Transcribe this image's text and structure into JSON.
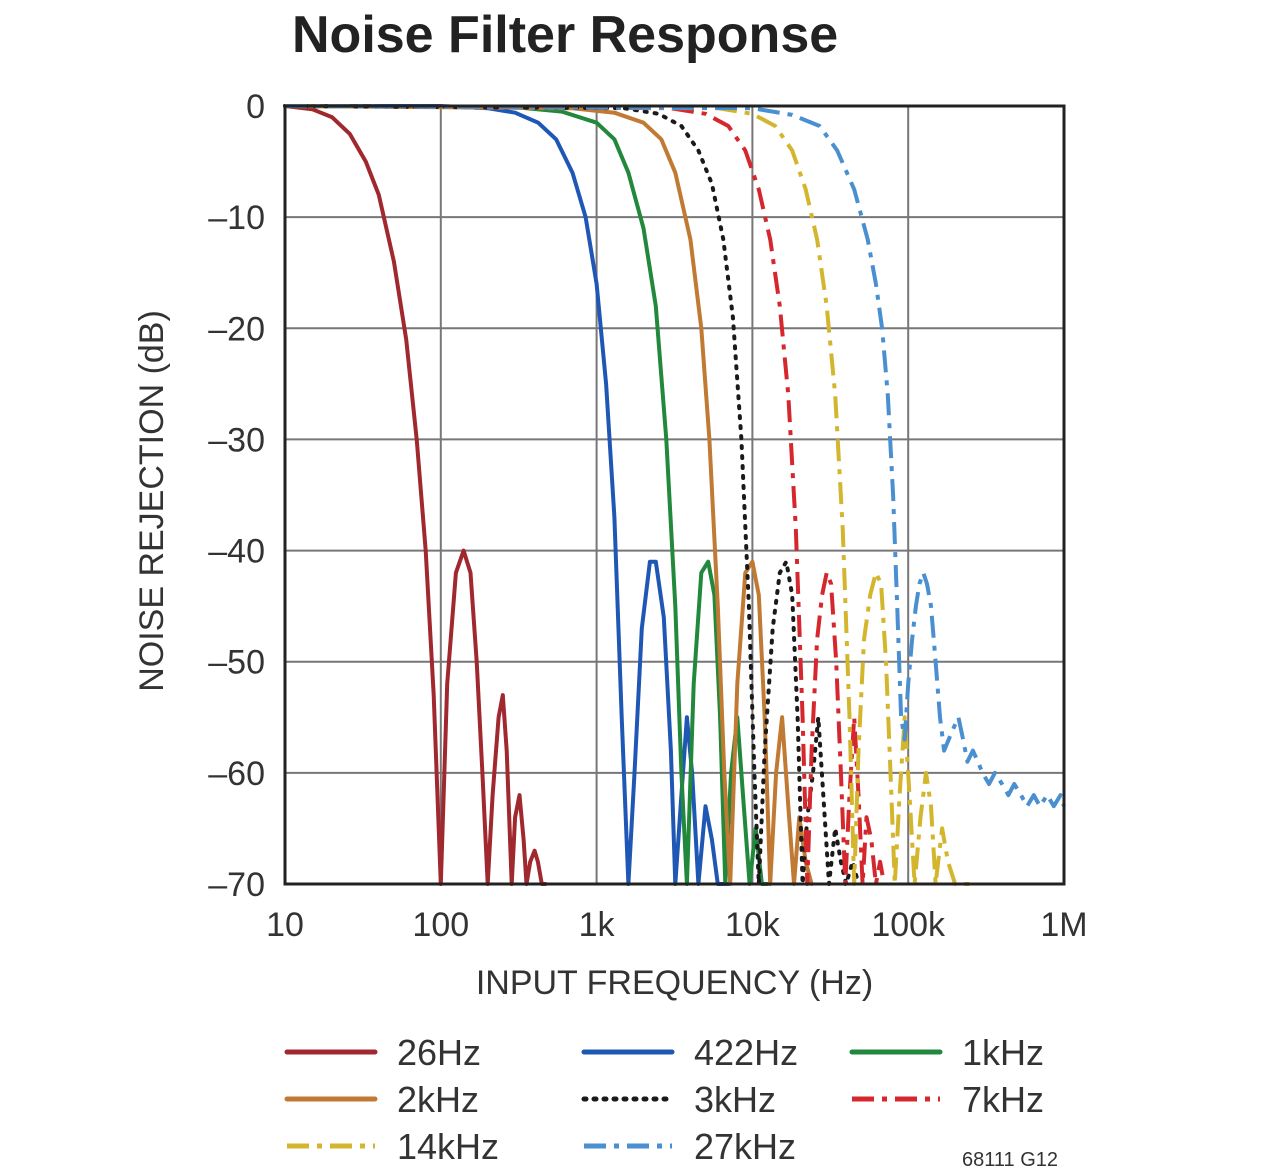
{
  "chart_data": {
    "type": "line",
    "title": "Noise Filter Response",
    "xlabel": "INPUT FREQUENCY (Hz)",
    "ylabel": "NOISE REJECTION (dB)",
    "xscale": "log",
    "xlim": [
      10,
      1000000
    ],
    "ylim": [
      -70,
      0
    ],
    "x_ticks": [
      {
        "value": 10,
        "label": "10"
      },
      {
        "value": 100,
        "label": "100"
      },
      {
        "value": 1000,
        "label": "1k"
      },
      {
        "value": 10000,
        "label": "10k"
      },
      {
        "value": 100000,
        "label": "100k"
      },
      {
        "value": 1000000,
        "label": "1M"
      }
    ],
    "y_ticks": [
      {
        "value": 0,
        "label": "0"
      },
      {
        "value": -10,
        "label": "–10"
      },
      {
        "value": -20,
        "label": "–20"
      },
      {
        "value": -30,
        "label": "–30"
      },
      {
        "value": -40,
        "label": "–40"
      },
      {
        "value": -50,
        "label": "–50"
      },
      {
        "value": -60,
        "label": "–60"
      },
      {
        "value": -70,
        "label": "–70"
      }
    ],
    "grid": true,
    "legend_position": "bottom",
    "figure_id": "68111 G12",
    "series": [
      {
        "name": "26Hz",
        "color": "#a0282f",
        "style": "solid",
        "x": [
          10,
          15,
          20,
          26,
          33,
          40,
          50,
          60,
          70,
          80,
          90,
          100,
          110,
          125,
          140,
          155,
          170,
          185,
          200,
          215,
          235,
          250,
          265,
          285,
          300,
          320,
          340,
          355,
          375,
          400,
          420,
          445,
          470
        ],
        "y": [
          0,
          -0.3,
          -1,
          -2.5,
          -5,
          -8,
          -14,
          -21,
          -30,
          -40,
          -53,
          -70,
          -52,
          -42,
          -40,
          -42,
          -50,
          -60,
          -70,
          -62,
          -55,
          -53,
          -58,
          -70,
          -64,
          -62,
          -66,
          -70,
          -68,
          -67,
          -68,
          -70,
          -70
        ]
      },
      {
        "name": "422Hz",
        "color": "#1f57b5",
        "style": "solid",
        "x": [
          10,
          100,
          200,
          300,
          422,
          550,
          700,
          850,
          1000,
          1150,
          1300,
          1450,
          1600,
          1750,
          1950,
          2200,
          2400,
          2700,
          3000,
          3200,
          3500,
          3800,
          4100,
          4500,
          5000,
          5500,
          6000,
          7000
        ],
        "y": [
          0,
          0,
          -0.2,
          -0.6,
          -1.5,
          -3,
          -6,
          -10,
          -16,
          -25,
          -37,
          -55,
          -70,
          -60,
          -47,
          -41,
          -41,
          -46,
          -58,
          -70,
          -62,
          -55,
          -60,
          -70,
          -63,
          -66,
          -70,
          -70
        ]
      },
      {
        "name": "1kHz",
        "color": "#22883c",
        "style": "solid",
        "x": [
          10,
          300,
          600,
          1000,
          1300,
          1600,
          2000,
          2400,
          2800,
          3200,
          3500,
          3800,
          4200,
          4700,
          5200,
          5700,
          6200,
          6700,
          7300,
          8000,
          8800,
          9600,
          10500,
          11500,
          12500
        ],
        "y": [
          0,
          -0.1,
          -0.5,
          -1.5,
          -3,
          -6,
          -11,
          -18,
          -30,
          -45,
          -60,
          -70,
          -52,
          -42,
          -41,
          -44,
          -55,
          -70,
          -60,
          -55,
          -63,
          -70,
          -65,
          -70,
          -70
        ]
      },
      {
        "name": "2kHz",
        "color": "#c07a34",
        "style": "solid",
        "x": [
          10,
          700,
          1300,
          2000,
          2600,
          3200,
          4000,
          4700,
          5300,
          6000,
          6600,
          7200,
          8000,
          9000,
          10000,
          11000,
          12000,
          13000,
          14200,
          15500,
          17000,
          18500,
          20000,
          22000,
          24000
        ],
        "y": [
          0,
          -0.2,
          -0.6,
          -1.5,
          -3,
          -6,
          -12,
          -20,
          -30,
          -45,
          -60,
          -70,
          -52,
          -42,
          -41,
          -44,
          -55,
          -70,
          -60,
          -55,
          -63,
          -70,
          -64,
          -68,
          -70
        ]
      },
      {
        "name": "3kHz",
        "color": "#1a1a1a",
        "style": "dotted",
        "x": [
          10,
          1500,
          2500,
          3500,
          4500,
          5500,
          6500,
          7500,
          8500,
          9500,
          10300,
          11000,
          12000,
          13500,
          15000,
          16500,
          18000,
          19500,
          21000,
          22500,
          24500,
          26500,
          28500,
          31000,
          34000,
          37000,
          40000,
          44000,
          48000
        ],
        "y": [
          0,
          -0.2,
          -0.7,
          -1.8,
          -4,
          -7,
          -12,
          -19,
          -30,
          -45,
          -60,
          -70,
          -58,
          -47,
          -42,
          -41,
          -44,
          -55,
          -70,
          -64,
          -60,
          -55,
          -62,
          -70,
          -65,
          -68,
          -70,
          -68,
          -70
        ]
      },
      {
        "name": "7kHz",
        "color": "#d5282e",
        "style": "dashdot",
        "x": [
          10,
          3000,
          5000,
          7000,
          9000,
          11000,
          13000,
          15000,
          17000,
          19000,
          21000,
          22500,
          24000,
          26000,
          28000,
          30000,
          32000,
          34500,
          37000,
          39500,
          42000,
          45000,
          48000,
          51000,
          54000,
          58000,
          62000,
          66000,
          70000
        ],
        "y": [
          0,
          -0.2,
          -0.7,
          -1.8,
          -4,
          -7.5,
          -12,
          -18,
          -26,
          -38,
          -55,
          -70,
          -58,
          -48,
          -44,
          -42,
          -43,
          -50,
          -60,
          -70,
          -62,
          -55,
          -62,
          -70,
          -64,
          -66,
          -70,
          -68,
          -70
        ]
      },
      {
        "name": "14kHz",
        "color": "#d4b52e",
        "style": "dashdot",
        "x": [
          10,
          6000,
          10000,
          14000,
          18000,
          22000,
          26000,
          30000,
          34000,
          38000,
          42000,
          45000,
          48000,
          52000,
          57000,
          62000,
          67000,
          72000,
          77000,
          82000,
          88000,
          95000,
          102000,
          110000,
          120000,
          130000,
          140000,
          150000,
          165000,
          180000,
          200000,
          220000,
          240000,
          260000
        ],
        "y": [
          0,
          -0.2,
          -0.7,
          -1.8,
          -4,
          -7.5,
          -12,
          -18,
          -26,
          -38,
          -55,
          -70,
          -58,
          -48,
          -44,
          -42,
          -43,
          -50,
          -60,
          -70,
          -62,
          -55,
          -62,
          -70,
          -64,
          -60,
          -63,
          -70,
          -65,
          -68,
          -70,
          -70,
          -70,
          -70
        ]
      },
      {
        "name": "27kHz",
        "color": "#4a8fd0",
        "style": "dashdot",
        "x": [
          10,
          10000,
          18000,
          27000,
          35000,
          45000,
          55000,
          62000,
          68000,
          74000,
          80000,
          85000,
          90000,
          95000,
          100000,
          106000,
          112000,
          118000,
          125000,
          132000,
          140000,
          150000,
          160000,
          170000,
          182000,
          195000,
          210000,
          225000,
          240000,
          260000,
          280000,
          300000,
          330000,
          360000,
          400000,
          440000,
          480000,
          530000,
          580000,
          640000,
          700000,
          780000,
          860000,
          950000,
          1000000
        ],
        "y": [
          0,
          -0.2,
          -0.8,
          -1.8,
          -4,
          -7.5,
          -12,
          -16,
          -20,
          -26,
          -35,
          -45,
          -55,
          -57,
          -52,
          -48,
          -45,
          -43,
          -42,
          -43,
          -45,
          -50,
          -55,
          -58,
          -57,
          -56,
          -55,
          -57,
          -59,
          -58,
          -59,
          -60,
          -61,
          -60,
          -61,
          -62,
          -61,
          -62,
          -63,
          -62,
          -63,
          -62,
          -63,
          -62,
          -63
        ]
      }
    ]
  }
}
